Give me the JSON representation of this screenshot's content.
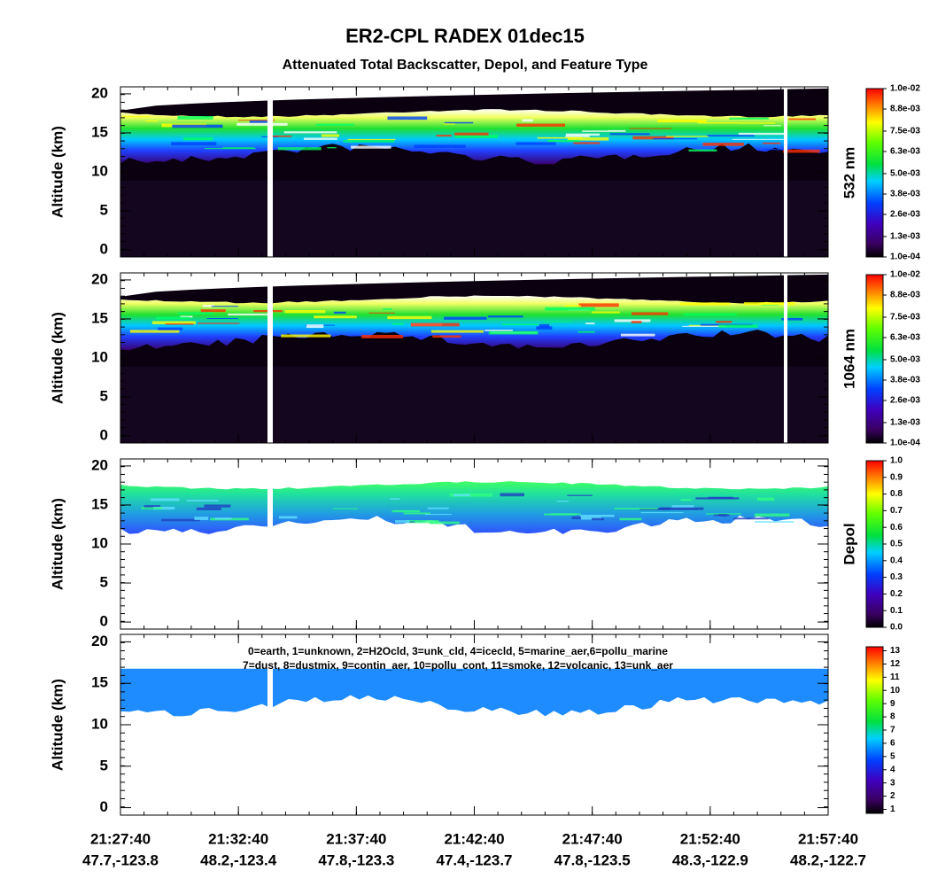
{
  "header": {
    "title": "ER2-CPL RADEX 01dec15",
    "subtitle": "Attenuated Total Backscatter, Depol, and Feature Type"
  },
  "chart_data": [
    {
      "type": "heatmap",
      "ylabel": "Altitude (km)",
      "ylim": [
        -0.9,
        20.9
      ],
      "yticks": [
        0,
        5,
        10,
        15,
        20
      ],
      "colorbar": {
        "label": "532 nm",
        "clim": [
          0.0001,
          0.01
        ],
        "ticks": [
          {
            "value": 0.0001,
            "label": "1.0e-04"
          },
          {
            "value": 0.0013,
            "label": "1.3e-03"
          },
          {
            "value": 0.0026,
            "label": "2.6e-03"
          },
          {
            "value": 0.0038,
            "label": "3.8e-03"
          },
          {
            "value": 0.005,
            "label": "5.0e-03"
          },
          {
            "value": 0.0063,
            "label": "6.3e-03"
          },
          {
            "value": 0.0075,
            "label": "7.5e-03"
          },
          {
            "value": 0.0088,
            "label": "8.8e-03"
          },
          {
            "value": 0.01,
            "label": "1.0e-02"
          }
        ]
      }
    },
    {
      "type": "heatmap",
      "ylabel": "Altitude (km)",
      "ylim": [
        -0.9,
        20.9
      ],
      "yticks": [
        0,
        5,
        10,
        15,
        20
      ],
      "colorbar": {
        "label": "1064 nm",
        "clim": [
          0.0001,
          0.01
        ],
        "ticks": [
          {
            "value": 0.0001,
            "label": "1.0e-04"
          },
          {
            "value": 0.0013,
            "label": "1.3e-03"
          },
          {
            "value": 0.0026,
            "label": "2.6e-03"
          },
          {
            "value": 0.0038,
            "label": "3.8e-03"
          },
          {
            "value": 0.005,
            "label": "5.0e-03"
          },
          {
            "value": 0.0063,
            "label": "6.3e-03"
          },
          {
            "value": 0.0075,
            "label": "7.5e-03"
          },
          {
            "value": 0.0088,
            "label": "8.8e-03"
          },
          {
            "value": 0.01,
            "label": "1.0e-02"
          }
        ]
      }
    },
    {
      "type": "heatmap",
      "ylabel": "Altitude (km)",
      "ylim": [
        -0.9,
        20.9
      ],
      "yticks": [
        0,
        5,
        10,
        15,
        20
      ],
      "colorbar": {
        "label": "Depol",
        "clim": [
          0,
          1
        ],
        "ticks": [
          {
            "value": 0,
            "label": "0.0"
          },
          0.1,
          0.2,
          0.3,
          0.4,
          0.5,
          0.6,
          0.7,
          0.8,
          0.9,
          {
            "value": 1,
            "label": "1.0"
          }
        ]
      }
    },
    {
      "type": "heatmap",
      "ylabel": "Altitude (km)",
      "ylim": [
        -0.9,
        20.9
      ],
      "yticks": [
        0,
        5,
        10,
        15,
        20
      ],
      "colorbar": {
        "clim": [
          0.7,
          13.3
        ],
        "ticks": [
          1,
          2,
          3,
          4,
          5,
          6,
          7,
          8,
          9,
          10,
          11,
          12,
          13
        ]
      },
      "legend_text": [
        "0=earth, 1=unknown, 2=H2Ocld, 3=unk_cld, 4=icecld, 5=marine_aer,6=pollu_marine",
        "7=dust, 8=dustmix, 9=contin_aer, 10=pollu_cont, 11=smoke, 12=volcanic, 13=unk_aer"
      ],
      "x": [
        "21:27:40",
        "21:32:40",
        "21:37:40",
        "21:42:40",
        "21:47:40",
        "21:52:40",
        "21:57:40"
      ],
      "x_locations": [
        "47.7,-123.8",
        "48.2,-123.4",
        "47.8,-123.3",
        "47.4,-123.7",
        "47.8,-123.5",
        "48.3,-122.9",
        "48.2,-122.7"
      ]
    }
  ]
}
